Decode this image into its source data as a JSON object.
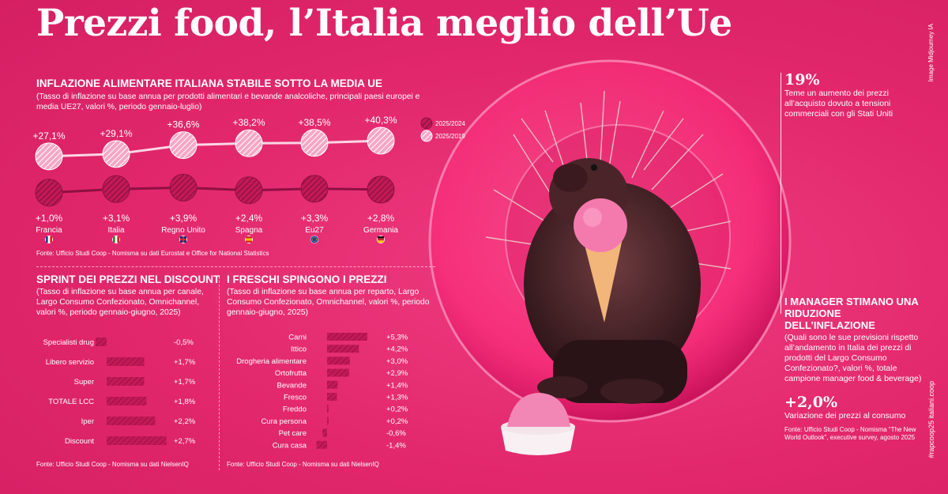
{
  "headline": "Prezzi food, l’Italia meglio dell’Ue",
  "image_credit": "Image Midjourney IA",
  "hashtag": "#rapcoop25 italiani.coop",
  "colors": {
    "background": "#e8286f",
    "dark_series": "#9b1247",
    "light_series": "#f58fb6"
  },
  "section1": {
    "title": "INFLAZIONE ALIMENTARE ITALIANA STABILE SOTTO LA MEDIA UE",
    "subtitle": "(Tasso di inflazione su base annua per prodotti alimentari e bevande analcoliche, principali paesi europei e media UE27, valori %, periodo gennaio-luglio)",
    "source": "Fonte: Ufficio Studi Coop - Nomisma su dati Eurostat e Office for National Statistics"
  },
  "section2": {
    "title": "SPRINT DEI PREZZI NEL DISCOUNT",
    "subtitle": "(Tasso di inflazione su base annua per canale, Largo Consumo Confezionato, Omnichannel, valori %, periodo gennaio-giugno, 2025)",
    "source": "Fonte: Ufficio Studi Coop - Nomisma su dati NielsenIQ"
  },
  "section3": {
    "title": "I FRESCHI SPINGONO I PREZZI",
    "subtitle": "(Tasso di inflazione su base annua per reparto, Largo Consumo Confezionato, Omnichannel, valori %, periodo gennaio-giugno, 2025)",
    "source": "Fonte: Ufficio Studi Coop - Nomisma su dati NielsenIQ"
  },
  "stat_top": {
    "value": "19%",
    "text": "Teme un aumento dei prezzi all’acquisto dovuto a tensioni commerciali con gli Stati Uniti"
  },
  "managers": {
    "title": "I MANAGER STIMANO UNA RIDUZIONE DELL’INFLAZIONE",
    "subtitle": "(Quali sono le sue previsioni rispetto all’andamento in Italia dei prezzi di prodotti del Largo Consumo Confezionato?, valori %, totale campione manager food & beverage)",
    "value": "+2,0%",
    "value_label": "Variazione dei prezzi al consumo",
    "source": "Fonte: Ufficio Studi Coop - Nomisma “The New World Outlook”, executive survey, agosto 2025"
  },
  "chart_data": [
    {
      "type": "line",
      "title": "INFLAZIONE ALIMENTARE ITALIANA STABILE SOTTO LA MEDIA UE",
      "categories": [
        "Francia",
        "Italia",
        "Regno Unito",
        "Spagna",
        "Eu27",
        "Germania"
      ],
      "flags": [
        "flag-france-icon",
        "flag-italy-icon",
        "flag-uk-icon",
        "flag-spain-icon",
        "flag-eu-icon",
        "flag-germany-icon"
      ],
      "series": [
        {
          "name": "2025/2019",
          "values": [
            27.1,
            29.1,
            36.6,
            38.2,
            38.5,
            40.3
          ],
          "labels": [
            "+27,1%",
            "+29,1%",
            "+36,6%",
            "+38,2%",
            "+38,5%",
            "+40,3%"
          ]
        },
        {
          "name": "2025/2024",
          "values": [
            1.0,
            3.1,
            3.9,
            2.4,
            3.3,
            2.8
          ],
          "labels": [
            "+1,0%",
            "+3,1%",
            "+3,9%",
            "+2,4%",
            "+3,3%",
            "+2,8%"
          ]
        }
      ],
      "legend": [
        "2025/2024",
        "2025/2019"
      ],
      "legend_position": "top-right"
    },
    {
      "type": "bar",
      "title": "SPRINT DEI PREZZI NEL DISCOUNT",
      "categories": [
        "Specialisti drug",
        "Libero servizio",
        "Super",
        "TOTALE LCC",
        "Iper",
        "Discount"
      ],
      "values": [
        -0.5,
        1.7,
        1.7,
        1.8,
        2.2,
        2.7
      ],
      "labels": [
        "-0,5%",
        "+1,7%",
        "+1,7%",
        "+1,8%",
        "+2,2%",
        "+2,7%"
      ]
    },
    {
      "type": "bar",
      "title": "I FRESCHI SPINGONO I PREZZI",
      "categories": [
        "Carni",
        "Ittico",
        "Drogheria alimentare",
        "Ortofrutta",
        "Bevande",
        "Fresco",
        "Freddo",
        "Cura persona",
        "Pet care",
        "Cura casa"
      ],
      "values": [
        5.3,
        4.2,
        3.0,
        2.9,
        1.4,
        1.3,
        0.2,
        0.2,
        -0.6,
        -1.4
      ],
      "labels": [
        "+5,3%",
        "+4,2%",
        "+3,0%",
        "+2,9%",
        "+1,4%",
        "+1,3%",
        "+0,2%",
        "+0,2%",
        "-0,6%",
        "-1,4%"
      ]
    }
  ]
}
